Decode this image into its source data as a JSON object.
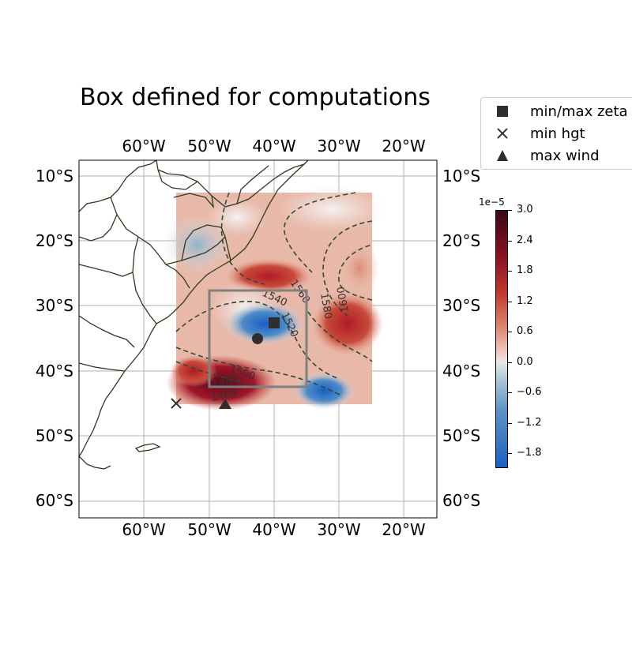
{
  "title": "Box defined for computations",
  "map": {
    "projection": "PlateCarree",
    "lon_range": [
      -70,
      -15
    ],
    "lat_range": [
      -62.5,
      -7.5
    ],
    "lon_ticks": [
      "60°W",
      "50°W",
      "40°W",
      "30°W",
      "20°W"
    ],
    "lat_ticks": [
      "10°S",
      "20°S",
      "30°S",
      "40°S",
      "50°S",
      "60°S"
    ],
    "gridlines": true,
    "coastline_color": "#2b3a1f",
    "field": {
      "name": "zeta",
      "lon_range": [
        -55,
        -25
      ],
      "lat_range": [
        -45,
        -12.5
      ]
    },
    "computation_box": {
      "lon_range": [
        -50,
        -35
      ],
      "lat_range": [
        -42.5,
        -27.5
      ],
      "color": "#808080"
    },
    "contour_labels": [
      "1560",
      "1540",
      "1520",
      "1580",
      "1600",
      "1500",
      "1480",
      "1460"
    ],
    "markers": {
      "min_max_zeta": {
        "lon": -40,
        "lat": -32.7
      },
      "min_hgt": {
        "lon": -55,
        "lat": -45
      },
      "max_wind": {
        "lon": -47.5,
        "lat": -45
      },
      "circle": {
        "lon": -42.5,
        "lat": -35
      }
    }
  },
  "legend": {
    "placement": "upper-right-outside",
    "items": [
      {
        "label": "min/max zeta",
        "symbol": "square-icon"
      },
      {
        "label": "min hgt",
        "symbol": "x-icon"
      },
      {
        "label": "max wind",
        "symbol": "triangle-icon"
      }
    ]
  },
  "colorbar": {
    "multiplier": "1e−5",
    "range": [
      -2.0,
      3.0
    ],
    "ticks": [
      "3.0",
      "2.4",
      "1.8",
      "1.2",
      "0.6",
      "0.0",
      "−0.6",
      "−1.2",
      "−1.8"
    ],
    "colors": {
      "high": "#3a0a14",
      "mid": "#e8e8e8",
      "low": "#1a5fc4"
    }
  }
}
